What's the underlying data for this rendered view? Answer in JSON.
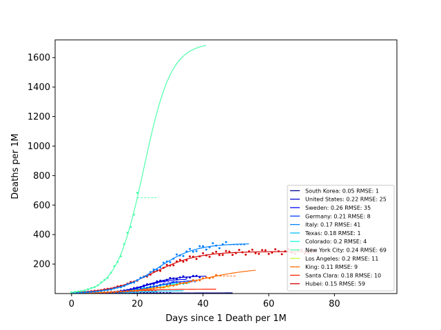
{
  "chart_data": {
    "type": "line",
    "xlabel": "Days since 1 Death per 1M",
    "ylabel": "Deaths per 1M",
    "xlim": [
      -5,
      99
    ],
    "ylim": [
      0,
      1720
    ],
    "xticks": [
      0,
      20,
      40,
      60,
      80
    ],
    "yticks": [
      200,
      400,
      600,
      800,
      1000,
      1200,
      1400,
      1600
    ],
    "xtick_labels": [
      "0",
      "20",
      "40",
      "60",
      "80"
    ],
    "ytick_labels": [
      "200",
      "400",
      "600",
      "800",
      "1000",
      "1200",
      "1400",
      "1600"
    ],
    "grid": false,
    "legend_position": "lower-right",
    "series": [
      {
        "name": "South Korea: 0.05 RMSE: 1",
        "color": "#00008f",
        "L": 6,
        "k": 0.05,
        "t0": 25,
        "fit_end": 49,
        "obs_end": 30
      },
      {
        "name": "United States: 0.22 RMSE: 25",
        "color": "#0000d6",
        "L": 120,
        "k": 0.22,
        "t0": 23,
        "fit_end": 41,
        "obs_end": 39
      },
      {
        "name": "Sweden: 0.26 RMSE: 35",
        "color": "#0000ff",
        "L": 100,
        "k": 0.26,
        "t0": 22,
        "fit_end": 35,
        "obs_end": 27
      },
      {
        "name": "Germany: 0.21 RMSE: 8",
        "color": "#003fff",
        "L": 95,
        "k": 0.21,
        "t0": 25,
        "fit_end": 38,
        "obs_end": 33
      },
      {
        "name": "Italy: 0.17 RMSE: 41",
        "color": "#0080ff",
        "L": 340,
        "k": 0.17,
        "t0": 26,
        "fit_end": 54,
        "obs_end": 47
      },
      {
        "name": "Texas: 0.18 RMSE: 1",
        "color": "#00c0ff",
        "L": 20,
        "k": 0.18,
        "t0": 18,
        "fit_end": 34,
        "obs_end": 20
      },
      {
        "name": "Colorado: 0.2 RMSE: 4",
        "color": "#16ffe1",
        "L": 75,
        "k": 0.2,
        "t0": 22,
        "fit_end": 36,
        "obs_end": 35
      },
      {
        "name": "New York City: 0.24 RMSE: 69",
        "color": "#4dffaa",
        "L": 1700,
        "k": 0.24,
        "t0": 22,
        "fit_end": 41,
        "obs_end": 20
      },
      {
        "name": "Los Angeles: 0.2 RMSE: 11",
        "color": "#c1ff36",
        "L": 55,
        "k": 0.2,
        "t0": 21,
        "fit_end": 30,
        "obs_end": 25
      },
      {
        "name": "King: 0.11 RMSE: 9",
        "color": "#ff6800",
        "L": 180,
        "k": 0.11,
        "t0": 38,
        "fit_end": 56,
        "obs_end": 44
      },
      {
        "name": "Santa Clara: 0.18 RMSE: 10",
        "color": "#ff2200",
        "L": 30,
        "k": 0.18,
        "t0": 17,
        "fit_end": 44,
        "obs_end": 20
      },
      {
        "name": "Hubei: 0.15 RMSE: 59",
        "color": "#d40000",
        "L": 285,
        "k": 0.15,
        "t0": 25,
        "fit_end": 74,
        "obs_end": 74
      }
    ]
  }
}
